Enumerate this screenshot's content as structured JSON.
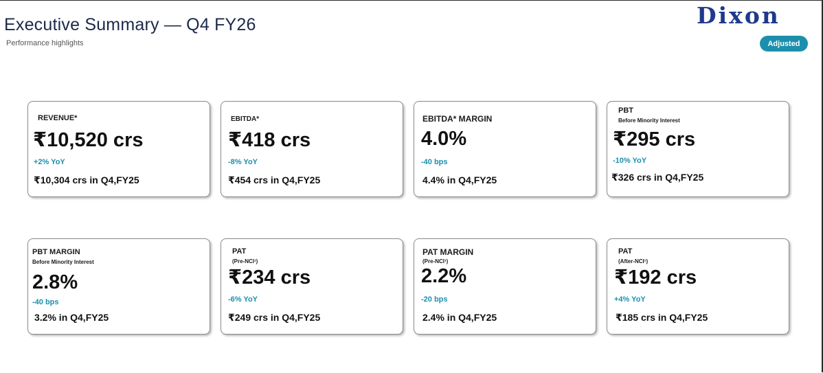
{
  "header": {
    "title": "Executive Summary — Q4 FY26",
    "subtitle": "Performance highlights",
    "logo_text": "Dixon",
    "badge_label": "Adjusted"
  },
  "colors": {
    "accent": "#1c8fad",
    "brand": "#1e3a8a"
  },
  "cards": [
    {
      "label": "REVENUE*",
      "sublabel": "",
      "value": "₹10,520 crs",
      "change": "+2% YoY",
      "previous": "₹10,304 crs in Q4,FY25"
    },
    {
      "label": "EBITDA*",
      "sublabel": "",
      "value": "₹418 crs",
      "change": "-8% YoY",
      "previous": "₹454 crs in Q4,FY25"
    },
    {
      "label": "EBITDA* MARGIN",
      "sublabel": "",
      "value": "4.0%",
      "change": "-40 bps",
      "previous": "4.4% in Q4,FY25"
    },
    {
      "label": "PBT",
      "sublabel": "Before Minority Interest",
      "value": "₹295 crs",
      "change": "-10% YoY",
      "previous": "₹326 crs in Q4,FY25"
    },
    {
      "label": "PBT MARGIN",
      "sublabel": "Before Minority Interest",
      "value": "2.8%",
      "change": "-40 bps",
      "previous": "3.2% in Q4,FY25"
    },
    {
      "label": "PAT",
      "sublabel": "(Pre-NCI¹)",
      "value": "₹234 crs",
      "change": "-6% YoY",
      "previous": "₹249 crs in Q4,FY25"
    },
    {
      "label": "PAT MARGIN",
      "sublabel": "(Pre-NCI¹)",
      "value": "2.2%",
      "change": "-20 bps",
      "previous": "2.4% in Q4,FY25"
    },
    {
      "label": "PAT",
      "sublabel": "(After-NCI¹)",
      "value": "₹192 crs",
      "change": "+4% YoY",
      "previous": "₹185 crs in Q4,FY25"
    }
  ]
}
